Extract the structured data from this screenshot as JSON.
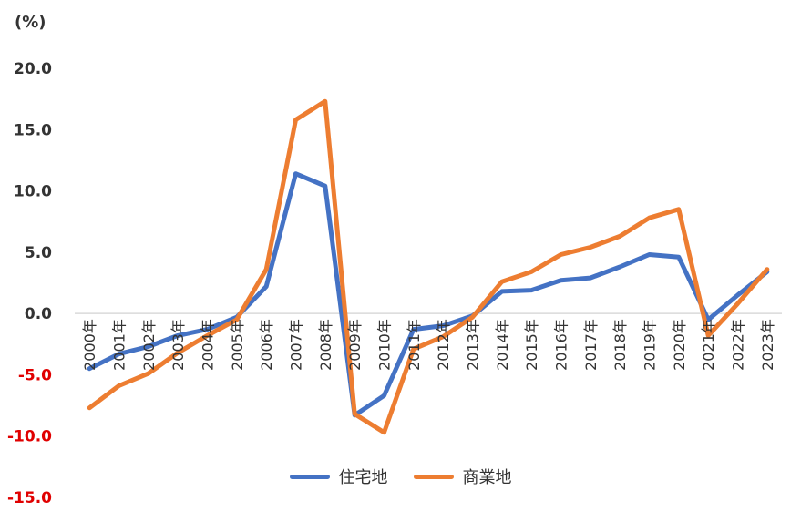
{
  "chart_data": {
    "type": "line",
    "title": "",
    "unit_label": "(%)",
    "xlabel": "",
    "ylabel": "",
    "ylim": [
      -15,
      20
    ],
    "yticks": [
      "20.0",
      "15.0",
      "10.0",
      "5.0",
      "0.0",
      "-5.0",
      "-10.0",
      "-15.0"
    ],
    "ytick_values": [
      20,
      15,
      10,
      5,
      0,
      -5,
      -10,
      -15
    ],
    "grid": false,
    "legend_position": "bottom",
    "categories": [
      "2000年",
      "2001年",
      "2002年",
      "2003年",
      "2004年",
      "2005年",
      "2006年",
      "2007年",
      "2008年",
      "2009年",
      "2010年",
      "2011年",
      "2012年",
      "2013年",
      "2014年",
      "2015年",
      "2016年",
      "2017年",
      "2018年",
      "2019年",
      "2020年",
      "2021年",
      "2022年",
      "2023年"
    ],
    "series": [
      {
        "name": "住宅地",
        "color": "#4472C4",
        "values": [
          -4.5,
          -3.3,
          -2.7,
          -1.8,
          -1.3,
          -0.3,
          2.2,
          11.4,
          10.4,
          -8.3,
          -6.7,
          -1.3,
          -1.0,
          -0.2,
          1.8,
          1.9,
          2.7,
          2.9,
          3.8,
          4.8,
          4.6,
          -0.5,
          1.5,
          3.4
        ]
      },
      {
        "name": "商業地",
        "color": "#ED7D31",
        "values": [
          -7.7,
          -5.9,
          -4.9,
          -3.2,
          -1.8,
          -0.5,
          3.6,
          15.8,
          17.3,
          -8.2,
          -9.7,
          -2.9,
          -1.9,
          -0.3,
          2.6,
          3.4,
          4.8,
          5.4,
          6.3,
          7.8,
          8.5,
          -1.8,
          0.8,
          3.6
        ]
      }
    ]
  }
}
